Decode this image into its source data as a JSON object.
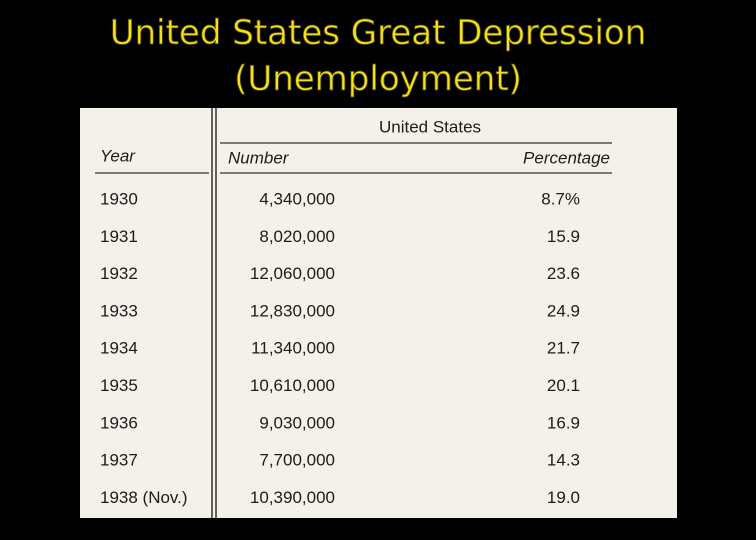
{
  "title": [
    "United States Great Depression",
    "(Unemployment)"
  ],
  "table": {
    "group_header": "United States",
    "headers": [
      "Year",
      "Number",
      "Percentage"
    ],
    "rows": [
      [
        "1930",
        "4,340,000",
        "8.7%"
      ],
      [
        "1931",
        "8,020,000",
        "15.9"
      ],
      [
        "1932",
        "12,060,000",
        "23.6"
      ],
      [
        "1933",
        "12,830,000",
        "24.9"
      ],
      [
        "1934",
        "11,340,000",
        "21.7"
      ],
      [
        "1935",
        "10,610,000",
        "20.1"
      ],
      [
        "1936",
        "9,030,000",
        "16.9"
      ],
      [
        "1937",
        "7,700,000",
        "14.3"
      ],
      [
        "1938 (Nov.)",
        "10,390,000",
        "19.0"
      ]
    ]
  }
}
